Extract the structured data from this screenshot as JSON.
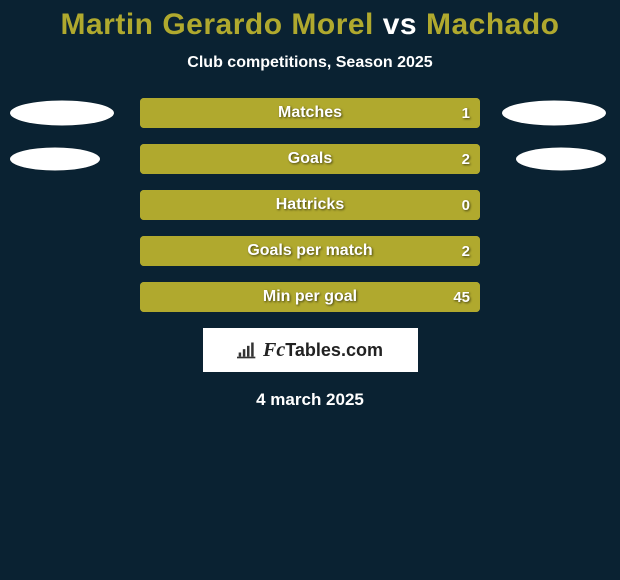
{
  "title": {
    "player1": "Martin Gerardo Morel",
    "vs": "vs",
    "player2": "Machado"
  },
  "subtitle": "Club competitions, Season 2025",
  "background_color": "#0a2232",
  "bar_color": "#b0a92e",
  "bar_border_color": "#b0a92e",
  "text_color": "#ffffff",
  "oval_color": "#ffffff",
  "stats": [
    {
      "label": "Matches",
      "value": "1",
      "fill_pct": 100,
      "left_oval": true,
      "right_oval": true,
      "oval_size": "large"
    },
    {
      "label": "Goals",
      "value": "2",
      "fill_pct": 100,
      "left_oval": true,
      "right_oval": true,
      "oval_size": "small"
    },
    {
      "label": "Hattricks",
      "value": "0",
      "fill_pct": 100,
      "left_oval": false,
      "right_oval": false,
      "oval_size": "large"
    },
    {
      "label": "Goals per match",
      "value": "2",
      "fill_pct": 100,
      "left_oval": false,
      "right_oval": false,
      "oval_size": "large"
    },
    {
      "label": "Min per goal",
      "value": "45",
      "fill_pct": 100,
      "left_oval": false,
      "right_oval": false,
      "oval_size": "large"
    }
  ],
  "logo": {
    "brand_prefix_italic": "Fc",
    "brand_rest": "Tables.com"
  },
  "date": "4 march 2025"
}
